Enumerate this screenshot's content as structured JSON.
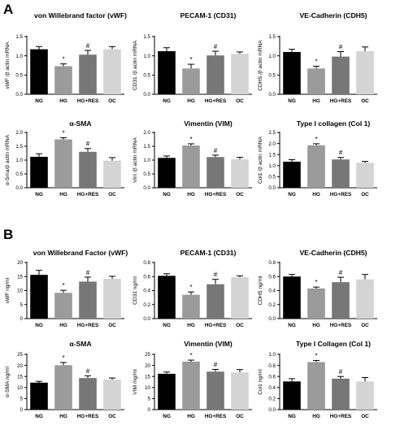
{
  "figure": {
    "panel_labels": [
      "A",
      "B"
    ]
  },
  "colors": {
    "NG": "#000000",
    "HG": "#9b9b9b",
    "HG+RES": "#777777",
    "OC": "#d4d4d4"
  },
  "chart_data": [
    {
      "panel": "A",
      "type": "bar",
      "title": "von Willebrand factor (vWF)",
      "ylabel": "vWF /β actin mRNA",
      "categories": [
        "NG",
        "HG",
        "HG+RES",
        "OC"
      ],
      "values": [
        1.17,
        0.73,
        1.03,
        1.17
      ],
      "errors": [
        0.07,
        0.06,
        0.11,
        0.07
      ],
      "significance": [
        "",
        "*",
        "#",
        ""
      ],
      "ylim": [
        0,
        1.5
      ],
      "yticks": [
        "0.0",
        "0.5",
        "1.0",
        "1.5"
      ]
    },
    {
      "panel": "A",
      "type": "bar",
      "title": "PECAM-1 (CD31)",
      "ylabel": "CD31 /β actin mRNA",
      "categories": [
        "NG",
        "HG",
        "HG+RES",
        "OC"
      ],
      "values": [
        1.12,
        0.67,
        1.01,
        1.05
      ],
      "errors": [
        0.09,
        0.11,
        0.11,
        0.05
      ],
      "significance": [
        "",
        "*",
        "#",
        ""
      ],
      "ylim": [
        0,
        1.5
      ],
      "yticks": [
        "0.0",
        "0.5",
        "1.0",
        "1.5"
      ]
    },
    {
      "panel": "A",
      "type": "bar",
      "title": "VE-Cadherin (CDH5)",
      "ylabel": "CDH5 /β actin mRNA",
      "categories": [
        "NG",
        "HG",
        "HG+RES",
        "OC"
      ],
      "values": [
        1.1,
        0.67,
        0.98,
        1.12
      ],
      "errors": [
        0.07,
        0.06,
        0.13,
        0.11
      ],
      "significance": [
        "",
        "*",
        "#",
        ""
      ],
      "ylim": [
        0,
        1.5
      ],
      "yticks": [
        "0.0",
        "0.5",
        "1.0",
        "1.5"
      ]
    },
    {
      "panel": "A",
      "type": "bar",
      "title": "α-SMA",
      "ylabel": "α-Sma/β actin mRNA",
      "categories": [
        "NG",
        "HG",
        "HG+RES",
        "OC"
      ],
      "values": [
        1.12,
        1.75,
        1.3,
        0.98
      ],
      "errors": [
        0.11,
        0.06,
        0.12,
        0.11
      ],
      "significance": [
        "",
        "*",
        "#",
        ""
      ],
      "ylim": [
        0,
        2.0
      ],
      "yticks": [
        "0.0",
        "0.5",
        "1.0",
        "1.5",
        "2.0"
      ]
    },
    {
      "panel": "A",
      "type": "bar",
      "title": "Vimentin (VIM)",
      "ylabel": "Vim /β actin mRNA",
      "categories": [
        "NG",
        "HG",
        "HG+RES",
        "OC"
      ],
      "values": [
        1.08,
        1.53,
        1.11,
        1.03
      ],
      "errors": [
        0.07,
        0.06,
        0.07,
        0.07
      ],
      "significance": [
        "",
        "*",
        "#",
        ""
      ],
      "ylim": [
        0,
        2.0
      ],
      "yticks": [
        "0.0",
        "0.5",
        "1.0",
        "1.5",
        "2.0"
      ]
    },
    {
      "panel": "A",
      "type": "bar",
      "title": "Type I collagen (Col 1)",
      "ylabel": "Col1 /β actin mRNA",
      "categories": [
        "NG",
        "HG",
        "HG+RES",
        "OC"
      ],
      "values": [
        1.18,
        1.92,
        1.28,
        1.13
      ],
      "errors": [
        0.09,
        0.07,
        0.09,
        0.06
      ],
      "significance": [
        "",
        "*",
        "#",
        ""
      ],
      "ylim": [
        0,
        2.5
      ],
      "yticks": [
        "0.0",
        "0.5",
        "1.0",
        "1.5",
        "2.0",
        "2.5"
      ]
    },
    {
      "panel": "B",
      "type": "bar",
      "title": "von Willebrand Factor (vWF)",
      "ylabel": "vWF ng/ml",
      "categories": [
        "NG",
        "HG",
        "HG+RES",
        "OC"
      ],
      "values": [
        15.6,
        9.2,
        13.2,
        14.2
      ],
      "errors": [
        1.6,
        0.9,
        1.6,
        0.9
      ],
      "significance": [
        "",
        "*",
        "#",
        ""
      ],
      "ylim": [
        0,
        20
      ],
      "yticks": [
        "0",
        "5",
        "10",
        "15",
        "20"
      ]
    },
    {
      "panel": "B",
      "type": "bar",
      "title": "PECAM-1 (CD31)",
      "ylabel": "CD31 ng/ml",
      "categories": [
        "NG",
        "HG",
        "HG+RES",
        "OC"
      ],
      "values": [
        0.61,
        0.34,
        0.49,
        0.59
      ],
      "errors": [
        0.03,
        0.04,
        0.07,
        0.02
      ],
      "significance": [
        "",
        "*",
        "#",
        ""
      ],
      "ylim": [
        0,
        0.8
      ],
      "yticks": [
        "0.0",
        "0.2",
        "0.4",
        "0.6",
        "0.8"
      ]
    },
    {
      "panel": "B",
      "type": "bar",
      "title": "VE-Cadherin (CDH5)",
      "ylabel": "CDH5 ng/ml",
      "categories": [
        "NG",
        "HG",
        "HG+RES",
        "OC"
      ],
      "values": [
        0.6,
        0.43,
        0.52,
        0.56
      ],
      "errors": [
        0.03,
        0.02,
        0.07,
        0.07
      ],
      "significance": [
        "",
        "*",
        "#",
        ""
      ],
      "ylim": [
        0,
        0.8
      ],
      "yticks": [
        "0.0",
        "0.2",
        "0.4",
        "0.6",
        "0.8"
      ]
    },
    {
      "panel": "B",
      "type": "bar",
      "title": "α-SMA",
      "ylabel": "α-SMA ng/ml",
      "categories": [
        "NG",
        "HG",
        "HG+RES",
        "OC"
      ],
      "values": [
        12.2,
        20.1,
        14.3,
        13.6
      ],
      "errors": [
        0.6,
        1.2,
        1.0,
        0.7
      ],
      "significance": [
        "",
        "*",
        "#",
        ""
      ],
      "ylim": [
        0,
        25
      ],
      "yticks": [
        "0",
        "5",
        "10",
        "15",
        "20",
        "25"
      ]
    },
    {
      "panel": "B",
      "type": "bar",
      "title": "Vimentin (VIM)",
      "ylabel": "VIM /ng/ml",
      "categories": [
        "NG",
        "HG",
        "HG+RES",
        "OC"
      ],
      "values": [
        16.2,
        21.7,
        17.2,
        16.8
      ],
      "errors": [
        0.8,
        0.7,
        1.0,
        1.3
      ],
      "significance": [
        "",
        "*",
        "#",
        ""
      ],
      "ylim": [
        0,
        25
      ],
      "yticks": [
        "0",
        "5",
        "10",
        "15",
        "20",
        "25"
      ]
    },
    {
      "panel": "B",
      "type": "bar",
      "title": "Type I Collagen (Col 1)",
      "ylabel": "Col1 ng/ml",
      "categories": [
        "NG",
        "HG",
        "HG+RES",
        "OC"
      ],
      "values": [
        0.51,
        0.86,
        0.56,
        0.51
      ],
      "errors": [
        0.05,
        0.03,
        0.04,
        0.07
      ],
      "significance": [
        "",
        "*",
        "#",
        ""
      ],
      "ylim": [
        0,
        1.0
      ],
      "yticks": [
        "0.0",
        "0.2",
        "0.4",
        "0.6",
        "0.8",
        "1.0"
      ]
    }
  ]
}
